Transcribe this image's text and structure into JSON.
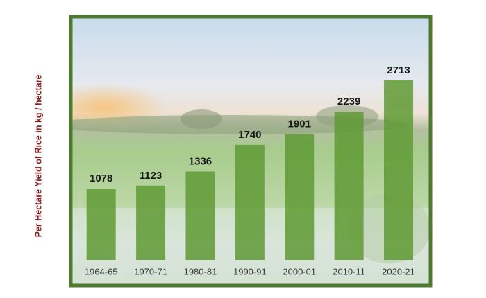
{
  "chart_data": {
    "type": "bar",
    "y_label": "Per Hectare Yield of Rice in kg / hectare",
    "categories": [
      "1964-65",
      "1970-71",
      "1980-81",
      "1990-91",
      "2000-01",
      "2010-11",
      "2020-21"
    ],
    "values": [
      1078,
      1123,
      1336,
      1740,
      1901,
      2239,
      2713
    ],
    "color": "#5f9a34"
  }
}
